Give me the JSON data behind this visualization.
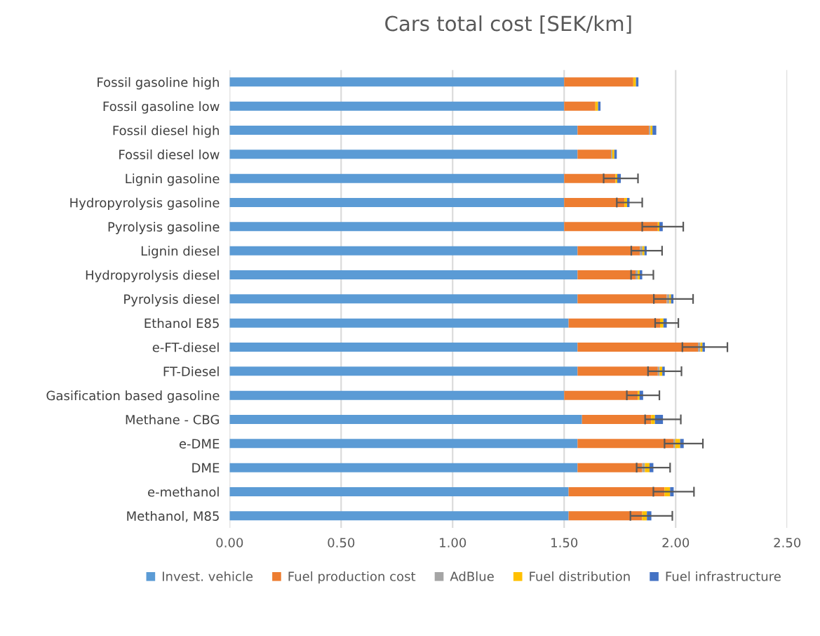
{
  "chart_data": {
    "type": "bar",
    "orientation": "horizontal",
    "stacked": true,
    "title": "Cars total cost [SEK/km]",
    "categories": [
      "Fossil gasoline high",
      "Fossil gasoline low",
      "Fossil diesel high",
      "Fossil diesel low",
      "Lignin gasoline",
      "Hydropyrolysis gasoline",
      "Pyrolysis gasoline",
      "Lignin diesel",
      "Hydropyrolysis diesel",
      "Pyrolysis diesel",
      "Ethanol E85",
      "e-FT-diesel",
      "FT-Diesel",
      "Gasification based gasoline",
      "Methane - CBG",
      "e-DME",
      "DME",
      "e-methanol",
      "Methanol, M85"
    ],
    "series": [
      {
        "name": "Invest. vehicle",
        "color": "#5b9bd5",
        "values": [
          1.5,
          1.5,
          1.56,
          1.56,
          1.5,
          1.5,
          1.5,
          1.56,
          1.56,
          1.56,
          1.52,
          1.56,
          1.56,
          1.5,
          1.58,
          1.56,
          1.56,
          1.52,
          1.52
        ]
      },
      {
        "name": "Fuel production cost",
        "color": "#ed7d31",
        "values": [
          0.31,
          0.14,
          0.32,
          0.15,
          0.23,
          0.27,
          0.42,
          0.28,
          0.26,
          0.4,
          0.41,
          0.54,
          0.36,
          0.33,
          0.31,
          0.43,
          0.29,
          0.43,
          0.33
        ]
      },
      {
        "name": "AdBlue",
        "color": "#a5a5a5",
        "values": [
          0,
          0,
          0.007,
          0.006,
          0,
          0,
          0,
          0.011,
          0.01,
          0.012,
          0,
          0.011,
          0.008,
          0,
          0,
          0.008,
          0.012,
          0,
          0
        ]
      },
      {
        "name": "Fuel distribution",
        "color": "#ffc000",
        "values": [
          0.012,
          0.012,
          0.009,
          0.009,
          0.008,
          0.012,
          0.007,
          0.009,
          0.009,
          0.007,
          0.015,
          0.009,
          0.012,
          0.008,
          0.017,
          0.022,
          0.021,
          0.025,
          0.021
        ]
      },
      {
        "name": "Fuel infrastructure",
        "color": "#4472c4",
        "values": [
          0.011,
          0.011,
          0.017,
          0.011,
          0.016,
          0.011,
          0.015,
          0.01,
          0.011,
          0.011,
          0.015,
          0.011,
          0.011,
          0.016,
          0.036,
          0.016,
          0.017,
          0.016,
          0.02
        ],
        "errors": [
          null,
          null,
          null,
          null,
          0.077,
          0.057,
          0.092,
          0.069,
          0.05,
          0.088,
          0.052,
          0.101,
          0.075,
          0.073,
          0.08,
          0.086,
          0.075,
          0.091,
          0.094
        ]
      }
    ],
    "xlim": [
      0,
      2.5
    ],
    "xticks": [
      {
        "value": 0,
        "label": "0.00"
      },
      {
        "value": 0.5,
        "label": "0.50"
      },
      {
        "value": 1,
        "label": "1.00"
      },
      {
        "value": 1.5,
        "label": "1.50"
      },
      {
        "value": 2,
        "label": "2.00"
      },
      {
        "value": 2.5,
        "label": "2.50"
      }
    ],
    "grid": "x",
    "legend": "bottom"
  }
}
